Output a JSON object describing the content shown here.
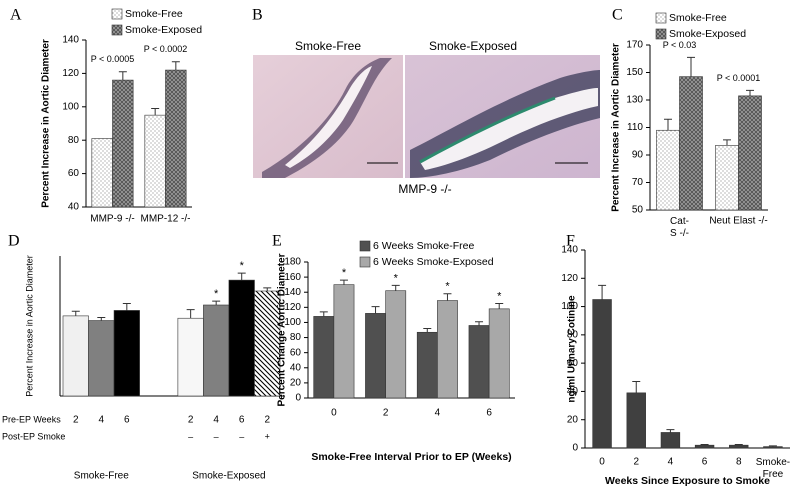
{
  "chart_data": [
    {
      "type": "bar",
      "panel": "A",
      "ylabel": "Percent Increase in Aortic Diameter",
      "categories": [
        "MMP-9 -/-",
        "MMP-12 -/-"
      ],
      "series": [
        {
          "name": "Smoke-Free",
          "fill": "dots",
          "values": [
            81,
            95
          ],
          "errors": [
            null,
            4
          ]
        },
        {
          "name": "Smoke-Exposed",
          "fill": "crosshatch",
          "values": [
            116,
            122
          ],
          "errors": [
            5,
            5
          ]
        }
      ],
      "annotations": [
        "P < 0.0005",
        "P < 0.0002"
      ],
      "ylim": [
        40,
        140
      ],
      "yticks": [
        40,
        60,
        80,
        100,
        120,
        140
      ]
    },
    {
      "type": "bar",
      "panel": "C",
      "ylabel": "Percent Increase in Aortic Diameter",
      "categories": [
        "Cat-S -/-",
        "Neut Elast -/-"
      ],
      "series": [
        {
          "name": "Smoke-Free",
          "fill": "dots",
          "values": [
            108,
            97
          ],
          "errors": [
            8,
            4
          ]
        },
        {
          "name": "Smoke-Exposed",
          "fill": "crosshatch",
          "values": [
            147,
            133
          ],
          "errors": [
            14,
            4
          ]
        }
      ],
      "annotations": [
        "P < 0.03",
        "P < 0.0001"
      ],
      "ylim": [
        50,
        170
      ],
      "yticks": [
        50,
        70,
        90,
        110,
        130,
        150,
        170
      ]
    },
    {
      "type": "bar",
      "panel": "D",
      "ylabel": "Percent Increase in Aortic Diameter",
      "row_label": "Pre-EP Weeks",
      "row2_label": "Post-EP Smoke",
      "categories": [
        "2",
        "4",
        "6",
        "2",
        "4",
        "6",
        "2"
      ],
      "row2": [
        null,
        null,
        null,
        "–",
        "–",
        "–",
        "+"
      ],
      "groups": [
        "Smoke-Free",
        "Smoke-Exposed"
      ],
      "series": [
        {
          "values": [
            103,
            97,
            110,
            100,
            117,
            149,
            135
          ],
          "errors": [
            6,
            4,
            9,
            11,
            5,
            9,
            4
          ],
          "fills": [
            "#f0f0f0",
            "#808080",
            "#000000",
            "#f7f7f7",
            "#808080",
            "#000000",
            "diagonal"
          ],
          "significance": [
            null,
            null,
            null,
            null,
            "*",
            "*",
            null
          ]
        }
      ],
      "ylim": [
        0,
        180
      ]
    },
    {
      "type": "bar",
      "panel": "E",
      "ylabel": "Percent  Change Aortic Diameter",
      "xlabel": "Smoke-Free Interval Prior to EP  (Weeks)",
      "categories": [
        "0",
        "2",
        "4",
        "6"
      ],
      "series": [
        {
          "name": "6 Weeks Smoke-Free",
          "fill": "#505050",
          "values": [
            108,
            112,
            87,
            96
          ],
          "errors": [
            6,
            9,
            5,
            5
          ]
        },
        {
          "name": "6 Weeks Smoke-Exposed",
          "fill": "#a8a8a8",
          "values": [
            150,
            142,
            129,
            118
          ],
          "errors": [
            6,
            7,
            9,
            7
          ],
          "significance": [
            "*",
            "*",
            "*",
            "*"
          ]
        }
      ],
      "ylim": [
        0,
        180
      ],
      "yticks": [
        0,
        20,
        40,
        60,
        80,
        100,
        120,
        140,
        160,
        180
      ]
    },
    {
      "type": "bar",
      "panel": "F",
      "ylabel": "ng/ml Urinary Cotinine",
      "xlabel": "Weeks Since Exposure to Smoke",
      "categories": [
        "0",
        "2",
        "4",
        "6",
        "8",
        "Smoke-Free"
      ],
      "series": [
        {
          "fill": "#404040",
          "values": [
            105,
            39,
            11,
            2,
            2,
            1
          ],
          "errors": [
            10,
            8,
            2,
            0.5,
            0.5,
            0.5
          ]
        }
      ],
      "ylim": [
        0,
        140
      ],
      "yticks": [
        0,
        20,
        40,
        60,
        80,
        100,
        120,
        140
      ]
    }
  ],
  "image_panel": {
    "panel": "B",
    "titles": [
      "Smoke-Free",
      "Smoke-Exposed"
    ],
    "caption": "MMP-9 -/-"
  }
}
